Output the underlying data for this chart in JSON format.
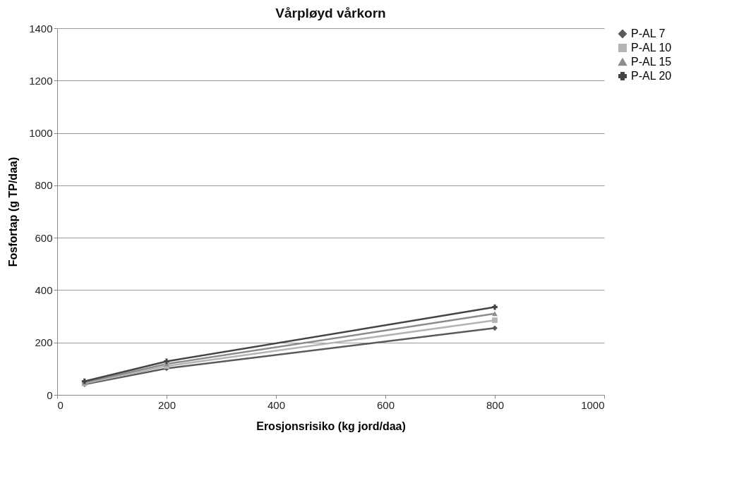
{
  "chart_data": {
    "type": "line",
    "title": "Vårpløyd vårkorn",
    "xlabel": "Erosjonsrisiko (kg jord/daa)",
    "ylabel": "Fosfortap (g TP/daa)",
    "x": [
      50,
      200,
      800
    ],
    "series": [
      {
        "name": "P-AL 7",
        "color": "#5a5a5a",
        "marker": "diamond",
        "values": [
          40,
          101,
          255
        ]
      },
      {
        "name": "P-AL 10",
        "color": "#b4b4b4",
        "marker": "square",
        "values": [
          44,
          110,
          285
        ]
      },
      {
        "name": "P-AL 15",
        "color": "#8c8c8c",
        "marker": "triangle",
        "values": [
          48,
          118,
          310
        ]
      },
      {
        "name": "P-AL 20",
        "color": "#444444",
        "marker": "cross",
        "values": [
          52,
          128,
          335
        ]
      }
    ],
    "xlim": [
      0,
      1000
    ],
    "xticks": [
      0,
      200,
      400,
      600,
      800,
      1000
    ],
    "ylim": [
      0,
      1400
    ],
    "yticks": [
      0,
      200,
      400,
      600,
      800,
      1000,
      1200,
      1400
    ],
    "grid": "y",
    "legend": "right",
    "line_style": "solid"
  }
}
